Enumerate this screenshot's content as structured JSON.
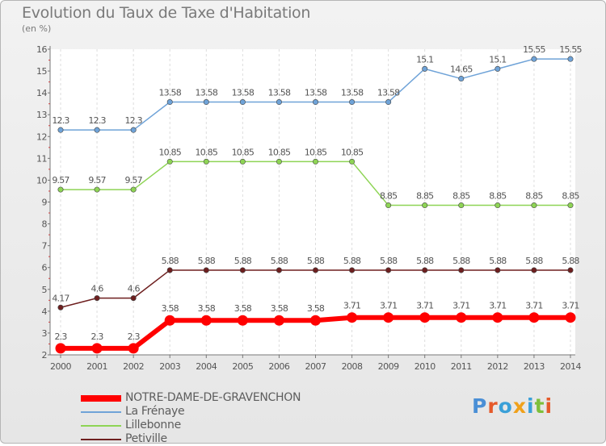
{
  "header": {
    "title": "Evolution du Taux de Taxe d'Habitation",
    "unit": "(en %)"
  },
  "logo": {
    "text": "Proxiti",
    "letter_colors": [
      "#4a8fd6",
      "#e55a2b",
      "#3aa0d8",
      "#f0a11a",
      "#3aa0d8",
      "#7dbf3a",
      "#e55a2b"
    ]
  },
  "chart_data": {
    "type": "line",
    "x": [
      "2000",
      "2001",
      "2002",
      "2003",
      "2004",
      "2005",
      "2006",
      "2007",
      "2008",
      "2009",
      "2010",
      "2011",
      "2012",
      "2013",
      "2014"
    ],
    "ylim": [
      2,
      16
    ],
    "yticks": [
      2,
      3,
      4,
      5,
      6,
      7,
      8,
      9,
      10,
      11,
      12,
      13,
      14,
      15,
      16
    ],
    "grid": "vertical-dashed",
    "legend_position": "bottom-left",
    "series": [
      {
        "name": "NOTRE-DAME-DE-GRAVENCHON",
        "color": "#ff0000",
        "values": [
          2.3,
          2.3,
          2.3,
          3.58,
          3.58,
          3.58,
          3.58,
          3.58,
          3.71,
          3.71,
          3.71,
          3.71,
          3.71,
          3.71,
          3.71
        ],
        "labels": [
          "2.3",
          "2.3",
          "2.3",
          "3.58",
          "3.58",
          "3.58",
          "3.58",
          "3.58",
          "3.71",
          "3.71",
          "3.71",
          "3.71",
          "3.71",
          "3.71",
          "3.71"
        ]
      },
      {
        "name": "La Frénaye",
        "color": "#6fa3d8",
        "values": [
          12.3,
          12.3,
          12.3,
          13.58,
          13.58,
          13.58,
          13.58,
          13.58,
          13.58,
          13.58,
          15.1,
          14.65,
          15.1,
          15.55,
          15.55
        ],
        "labels": [
          "12.3",
          "12.3",
          "12.3",
          "13.58",
          "13.58",
          "13.58",
          "13.58",
          "13.58",
          "13.58",
          "13.58",
          "15.1",
          "14.65",
          "15.1",
          "15.55",
          "15.55"
        ]
      },
      {
        "name": "Lillebonne",
        "color": "#8ed455",
        "values": [
          9.57,
          9.57,
          9.57,
          10.85,
          10.85,
          10.85,
          10.85,
          10.85,
          10.85,
          8.85,
          8.85,
          8.85,
          8.85,
          8.85,
          8.85
        ],
        "labels": [
          "9.57",
          "9.57",
          "9.57",
          "10.85",
          "10.85",
          "10.85",
          "10.85",
          "10.85",
          "10.85",
          "8.85",
          "8.85",
          "8.85",
          "8.85",
          "8.85",
          "8.85"
        ]
      },
      {
        "name": "Petiville",
        "color": "#6e1f1f",
        "values": [
          4.17,
          4.6,
          4.6,
          5.88,
          5.88,
          5.88,
          5.88,
          5.88,
          5.88,
          5.88,
          5.88,
          5.88,
          5.88,
          5.88,
          5.88
        ],
        "labels": [
          "4.17",
          "4.6",
          "4.6",
          "5.88",
          "5.88",
          "5.88",
          "5.88",
          "5.88",
          "5.88",
          "5.88",
          "5.88",
          "5.88",
          "5.88",
          "5.88",
          "5.88"
        ]
      }
    ]
  }
}
